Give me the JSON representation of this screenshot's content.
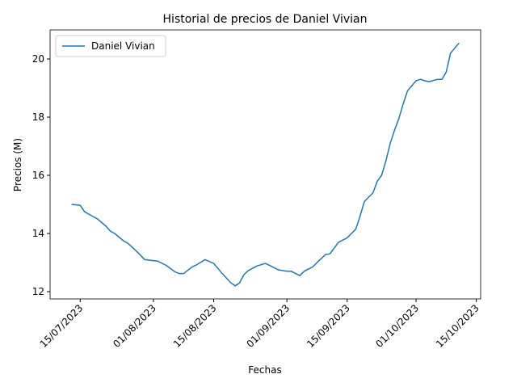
{
  "chart_data": {
    "type": "line",
    "title": "Historial de precios de Daniel Vivian",
    "xlabel": "Fechas",
    "ylabel": "Precios (M)",
    "x": [
      "13/07/2023",
      "15/07/2023",
      "16/07/2023",
      "18/07/2023",
      "19/07/2023",
      "21/07/2023",
      "22/07/2023",
      "23/07/2023",
      "25/07/2023",
      "26/07/2023",
      "28/07/2023",
      "30/07/2023",
      "02/08/2023",
      "04/08/2023",
      "06/08/2023",
      "07/08/2023",
      "08/08/2023",
      "10/08/2023",
      "11/08/2023",
      "13/08/2023",
      "15/08/2023",
      "17/08/2023",
      "19/08/2023",
      "20/08/2023",
      "21/08/2023",
      "22/08/2023",
      "23/08/2023",
      "25/08/2023",
      "27/08/2023",
      "28/08/2023",
      "30/08/2023",
      "01/09/2023",
      "02/09/2023",
      "04/09/2023",
      "05/09/2023",
      "07/09/2023",
      "08/09/2023",
      "10/09/2023",
      "11/09/2023",
      "12/09/2023",
      "13/09/2023",
      "15/09/2023",
      "17/09/2023",
      "18/09/2023",
      "19/09/2023",
      "21/09/2023",
      "22/09/2023",
      "23/09/2023",
      "24/09/2023",
      "25/09/2023",
      "26/09/2023",
      "27/09/2023",
      "28/09/2023",
      "29/09/2023",
      "01/10/2023",
      "02/10/2023",
      "03/10/2023",
      "04/10/2023",
      "06/10/2023",
      "07/10/2023",
      "08/10/2023",
      "09/10/2023",
      "11/10/2023"
    ],
    "series": [
      {
        "name": "Daniel Vivian",
        "color": "#1f77b4",
        "values": [
          15.0,
          14.97,
          14.75,
          14.58,
          14.5,
          14.25,
          14.08,
          14.0,
          13.75,
          13.67,
          13.4,
          13.1,
          13.05,
          12.9,
          12.68,
          12.62,
          12.62,
          12.85,
          12.92,
          13.1,
          12.97,
          12.62,
          12.3,
          12.2,
          12.3,
          12.58,
          12.72,
          12.88,
          12.97,
          12.9,
          12.75,
          12.7,
          12.7,
          12.55,
          12.7,
          12.85,
          13.0,
          13.28,
          13.3,
          13.5,
          13.7,
          13.85,
          14.15,
          14.6,
          15.1,
          15.4,
          15.8,
          16.0,
          16.5,
          17.1,
          17.55,
          17.95,
          18.45,
          18.9,
          19.25,
          19.3,
          19.25,
          19.22,
          19.3,
          19.3,
          19.55,
          20.2,
          20.55
        ]
      }
    ],
    "xlim": [
      "08/07/2023",
      "16/10/2023"
    ],
    "xticks": [
      "15/07/2023",
      "01/08/2023",
      "15/08/2023",
      "01/09/2023",
      "15/09/2023",
      "01/10/2023",
      "15/10/2023"
    ],
    "ylim": [
      11.75,
      21.0
    ],
    "yticks": [
      12,
      14,
      16,
      18,
      20
    ],
    "legend": "upper left"
  }
}
